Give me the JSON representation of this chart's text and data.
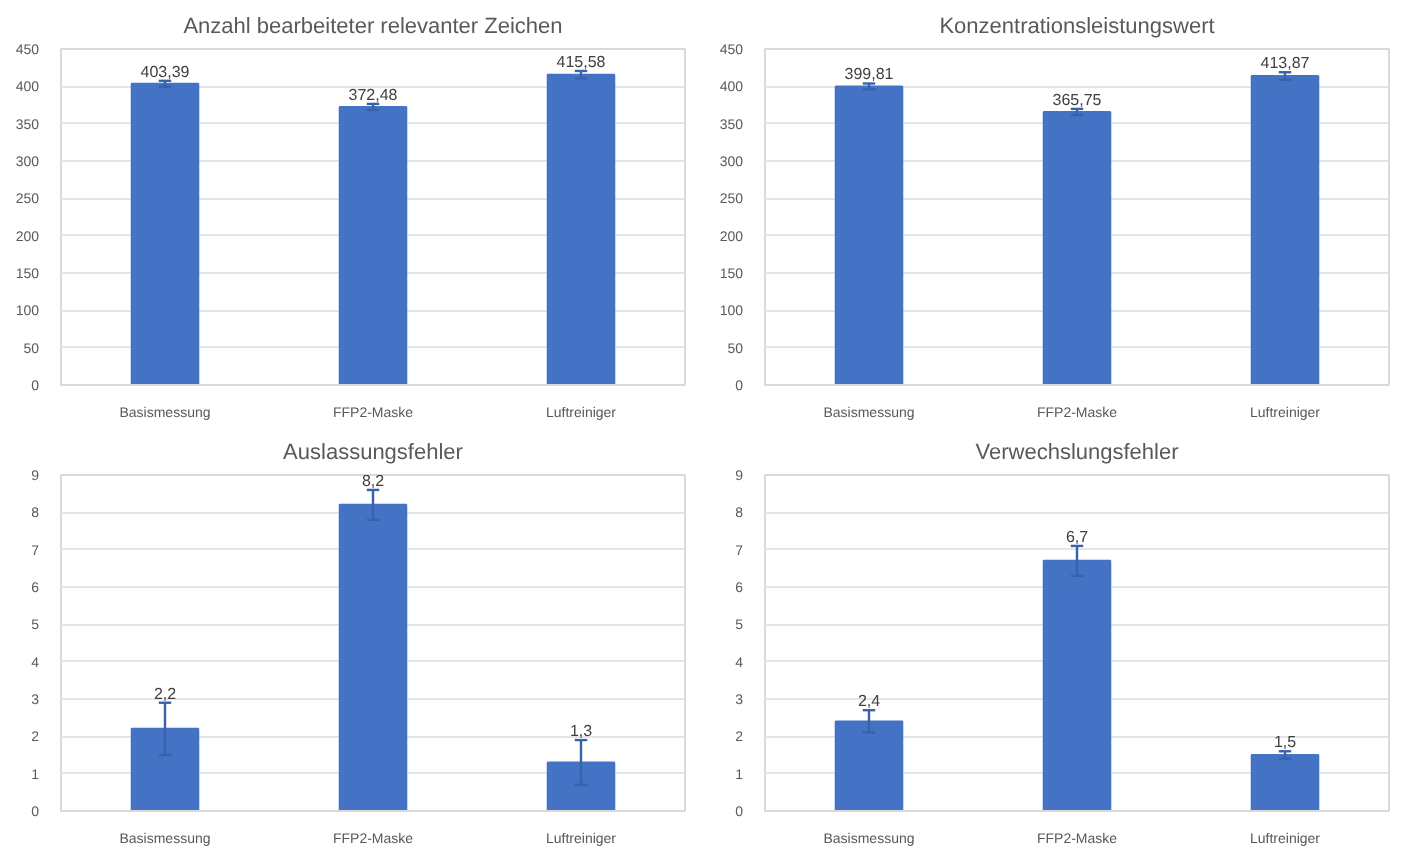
{
  "chart_data": [
    {
      "type": "bar",
      "title": "Anzahl bearbeiteter relevanter Zeichen",
      "categories": [
        "Basismessung",
        "FFP2-Maske",
        "Luftreiniger"
      ],
      "values": [
        403.39,
        372.48,
        415.58
      ],
      "errors": [
        4,
        4,
        5
      ],
      "value_labels": [
        "403,39",
        "372,48",
        "415,58"
      ],
      "color": "#4472c4",
      "ylim": [
        0,
        450
      ],
      "yticks": [
        0,
        50,
        100,
        150,
        200,
        250,
        300,
        350,
        400,
        450
      ],
      "grid": "y"
    },
    {
      "type": "bar",
      "title": "Konzentrationsleistungswert",
      "categories": [
        "Basismessung",
        "FFP2-Maske",
        "Luftreiniger"
      ],
      "values": [
        399.81,
        365.75,
        413.87
      ],
      "errors": [
        4,
        4,
        5
      ],
      "value_labels": [
        "399,81",
        "365,75",
        "413,87"
      ],
      "color": "#4472c4",
      "ylim": [
        0,
        450
      ],
      "yticks": [
        0,
        50,
        100,
        150,
        200,
        250,
        300,
        350,
        400,
        450
      ],
      "grid": "y"
    },
    {
      "type": "bar",
      "title": "Auslassungsfehler",
      "categories": [
        "Basismessung",
        "FFP2-Maske",
        "Luftreiniger"
      ],
      "values": [
        2.2,
        8.2,
        1.3
      ],
      "errors": [
        0.7,
        0.4,
        0.6
      ],
      "value_labels": [
        "2,2",
        "8,2",
        "1,3"
      ],
      "color": "#4472c4",
      "ylim": [
        0,
        9
      ],
      "yticks": [
        0,
        1,
        2,
        3,
        4,
        5,
        6,
        7,
        8,
        9
      ],
      "grid": "y"
    },
    {
      "type": "bar",
      "title": "Verwechslungsfehler",
      "categories": [
        "Basismessung",
        "FFP2-Maske",
        "Luftreiniger"
      ],
      "values": [
        2.4,
        6.7,
        1.5
      ],
      "errors": [
        0.3,
        0.4,
        0.1
      ],
      "value_labels": [
        "2,4",
        "6,7",
        "1,5"
      ],
      "color": "#4472c4",
      "ylim": [
        0,
        9
      ],
      "yticks": [
        0,
        1,
        2,
        3,
        4,
        5,
        6,
        7,
        8,
        9
      ],
      "grid": "y"
    }
  ]
}
